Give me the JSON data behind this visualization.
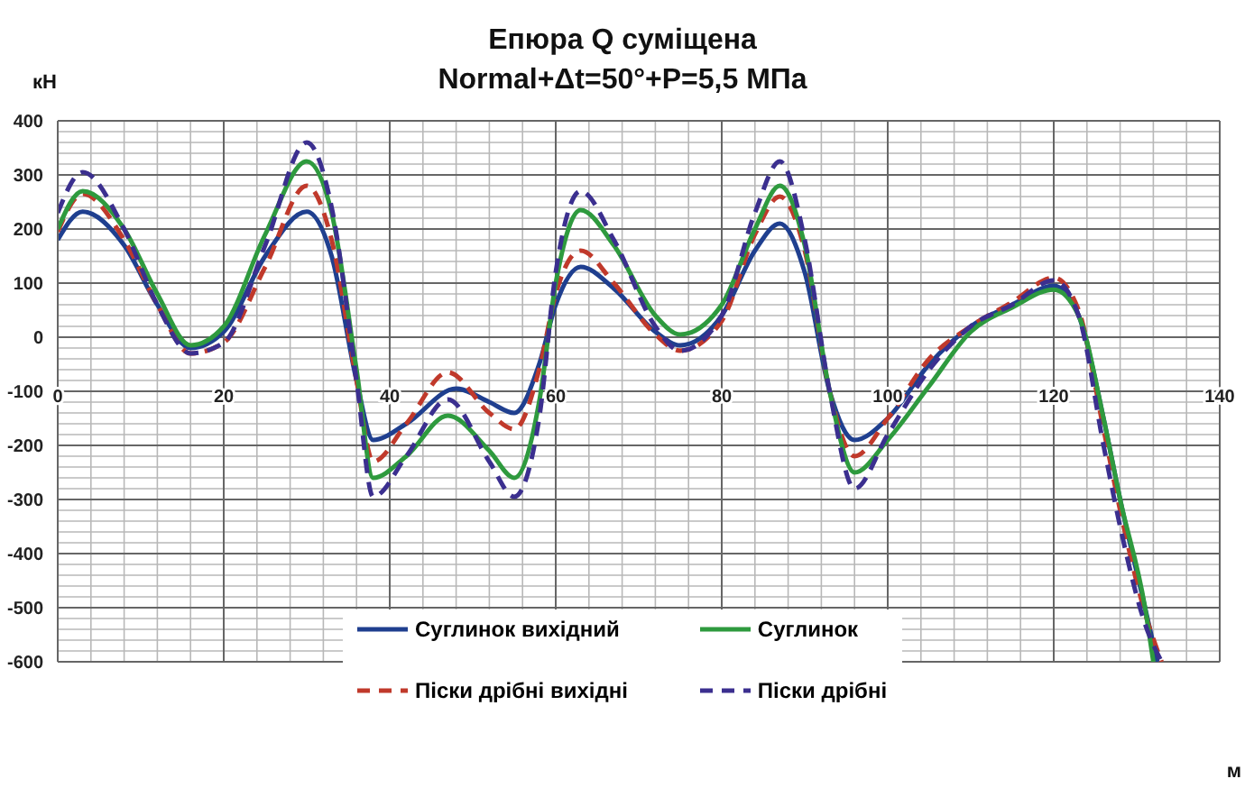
{
  "chart_data": {
    "type": "line",
    "title": "Епюра Q суміщена",
    "subtitle": "Normal+Δt=50°+P=5,5 МПа",
    "ylabel": "кН",
    "xlabel": "м",
    "xlim": [
      0,
      140
    ],
    "xticks": [
      0,
      20,
      40,
      60,
      80,
      100,
      120,
      140
    ],
    "ylim": [
      -600,
      400
    ],
    "yticks": [
      -600,
      -500,
      -400,
      -300,
      -200,
      -100,
      0,
      100,
      200,
      300,
      400
    ],
    "grid": true,
    "legend": "bottom",
    "marker": "none",
    "series": [
      {
        "name": "Суглинок вихідний",
        "color": "#1f3f8f",
        "line_style": "solid",
        "x": [
          0,
          3,
          8,
          12,
          16,
          20,
          25,
          30,
          33,
          36,
          38,
          42,
          48,
          52,
          55,
          58,
          60,
          63,
          67,
          72,
          75,
          80,
          84,
          87,
          90,
          93,
          96,
          100,
          105,
          110,
          115,
          120,
          123,
          126,
          128,
          131,
          132.5
        ],
        "values": [
          180,
          232,
          170,
          60,
          -20,
          10,
          150,
          232,
          150,
          -80,
          -190,
          -160,
          -95,
          -120,
          -140,
          -50,
          60,
          130,
          90,
          10,
          -15,
          40,
          160,
          210,
          120,
          -100,
          -190,
          -150,
          -50,
          20,
          60,
          95,
          40,
          -150,
          -300,
          -500,
          -600
        ]
      },
      {
        "name": "Піски дрібні вихідні",
        "color": "#c0392b",
        "line_style": "dashed",
        "x": [
          0,
          3,
          8,
          12,
          16,
          20,
          25,
          30,
          33,
          36,
          38,
          42,
          47,
          52,
          55,
          58,
          60,
          63,
          67,
          72,
          75,
          80,
          84,
          87,
          90,
          93,
          96,
          100,
          105,
          110,
          115,
          120,
          123,
          126,
          128,
          131,
          133
        ],
        "values": [
          195,
          265,
          180,
          60,
          -30,
          -10,
          130,
          280,
          180,
          -80,
          -230,
          -160,
          -65,
          -140,
          -170,
          -60,
          80,
          160,
          100,
          5,
          -25,
          30,
          190,
          260,
          160,
          -100,
          -220,
          -150,
          -40,
          20,
          65,
          110,
          50,
          -170,
          -320,
          -510,
          -600
        ]
      },
      {
        "name": "Суглинок",
        "color": "#2e9a3e",
        "line_style": "solid",
        "x": [
          0,
          3,
          8,
          12,
          16,
          20,
          25,
          30,
          33,
          36,
          38,
          42,
          47,
          52,
          55,
          58,
          60,
          63,
          67,
          72,
          75,
          80,
          84,
          87,
          90,
          93,
          96,
          100,
          105,
          110,
          115,
          120,
          123,
          126,
          128,
          131,
          132
        ],
        "values": [
          200,
          270,
          200,
          80,
          -15,
          20,
          190,
          325,
          230,
          -60,
          -260,
          -220,
          -145,
          -210,
          -260,
          -120,
          100,
          235,
          170,
          40,
          5,
          60,
          200,
          280,
          170,
          -100,
          -250,
          -190,
          -90,
          10,
          55,
          88,
          40,
          -150,
          -300,
          -500,
          -600
        ]
      },
      {
        "name": "Піски дрібні",
        "color": "#3b2f8f",
        "line_style": "dashed",
        "x": [
          0,
          3,
          8,
          12,
          16,
          20,
          25,
          30,
          33,
          36,
          38,
          42,
          47,
          52,
          55,
          58,
          60,
          63,
          67,
          72,
          75,
          80,
          84,
          87,
          90,
          93,
          96,
          100,
          105,
          110,
          115,
          120,
          123,
          126,
          128,
          131,
          133
        ],
        "values": [
          230,
          305,
          200,
          60,
          -30,
          -10,
          170,
          360,
          240,
          -80,
          -295,
          -220,
          -115,
          -230,
          -295,
          -150,
          120,
          270,
          180,
          20,
          -25,
          40,
          230,
          325,
          180,
          -100,
          -280,
          -180,
          -60,
          20,
          60,
          105,
          40,
          -200,
          -350,
          -530,
          -600
        ]
      }
    ]
  }
}
